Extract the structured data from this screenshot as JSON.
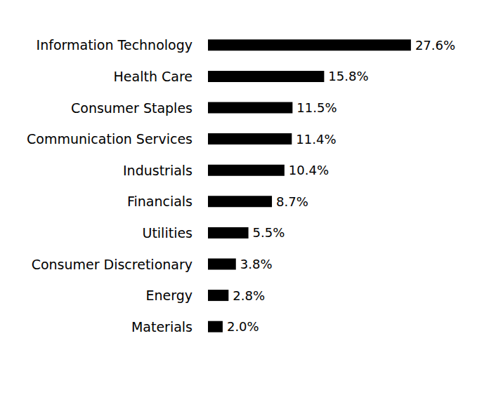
{
  "chart_data": {
    "type": "bar",
    "orientation": "horizontal",
    "categories": [
      "Information Technology",
      "Health Care",
      "Consumer Staples",
      "Communication Services",
      "Industrials",
      "Financials",
      "Utilities",
      "Consumer Discretionary",
      "Energy",
      "Materials"
    ],
    "values": [
      27.6,
      15.8,
      11.5,
      11.4,
      10.4,
      8.7,
      5.5,
      3.8,
      2.8,
      2.0
    ],
    "value_labels": [
      "27.6%",
      "15.8%",
      "11.5%",
      "11.4%",
      "10.4%",
      "8.7%",
      "5.5%",
      "3.8%",
      "2.8%",
      "2.0%"
    ],
    "color": "#000000",
    "data_labels": true,
    "tick_labels": "y",
    "grid": false
  }
}
